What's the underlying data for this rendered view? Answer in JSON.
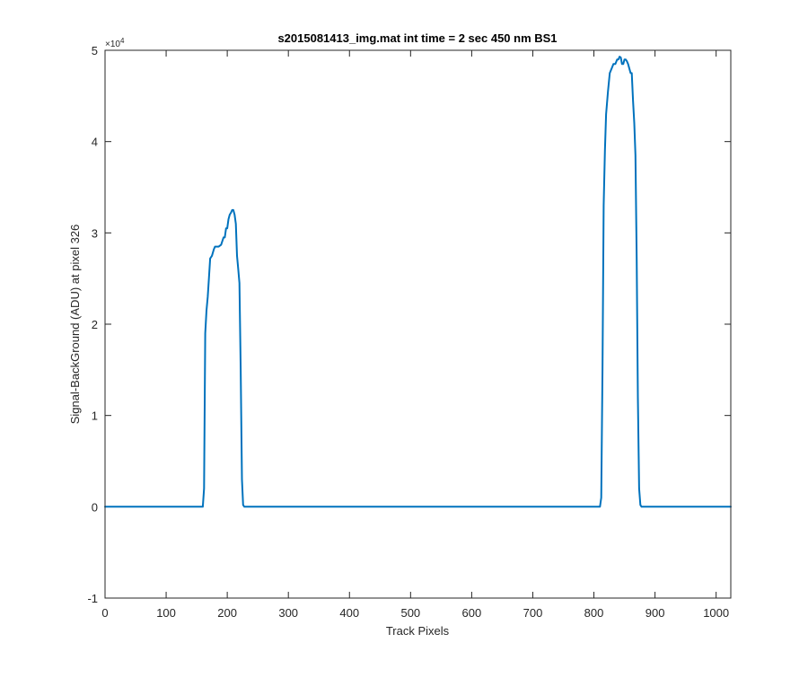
{
  "chart_data": {
    "type": "line",
    "title": "s2015081413_img.mat int time = 2 sec  450 nm BS1",
    "xlabel": "Track Pixels",
    "ylabel": "Signal-BackGround (ADU) at pixel 326",
    "xlim": [
      0,
      1024
    ],
    "ylim": [
      -1,
      5
    ],
    "y_scale_factor_label": "×10",
    "y_scale_exponent": "4",
    "x_ticks": [
      "0",
      "100",
      "200",
      "300",
      "400",
      "500",
      "600",
      "700",
      "800",
      "900",
      "1000"
    ],
    "y_ticks": [
      "-1",
      "0",
      "1",
      "2",
      "3",
      "4",
      "5"
    ],
    "grid": false,
    "legend": "none",
    "series": [
      {
        "color": "#0072bd",
        "x": [
          0,
          100,
          160,
          162,
          164,
          166,
          168,
          170,
          172,
          175,
          178,
          180,
          183,
          186,
          190,
          194,
          196,
          198,
          200,
          202,
          204,
          206,
          208,
          210,
          212,
          214,
          216,
          218,
          220,
          222,
          224,
          226,
          228,
          230,
          300,
          500,
          700,
          810,
          812,
          814,
          816,
          818,
          820,
          823,
          826,
          829,
          832,
          835,
          838,
          840,
          842,
          844,
          846,
          848,
          850,
          852,
          854,
          856,
          858,
          860,
          862,
          864,
          866,
          868,
          870,
          872,
          874,
          876,
          878,
          950,
          1024
        ],
        "y": [
          0,
          0,
          0,
          0.2,
          1.9,
          2.15,
          2.3,
          2.5,
          2.72,
          2.75,
          2.82,
          2.85,
          2.85,
          2.85,
          2.87,
          2.95,
          2.95,
          3.05,
          3.05,
          3.15,
          3.2,
          3.22,
          3.25,
          3.25,
          3.2,
          3.1,
          2.75,
          2.6,
          2.45,
          1.5,
          0.3,
          0.02,
          0,
          0,
          0,
          0,
          0,
          0,
          0.1,
          1.5,
          3.3,
          3.9,
          4.3,
          4.55,
          4.75,
          4.8,
          4.85,
          4.85,
          4.9,
          4.9,
          4.93,
          4.92,
          4.85,
          4.85,
          4.9,
          4.9,
          4.88,
          4.85,
          4.8,
          4.75,
          4.75,
          4.45,
          4.2,
          3.85,
          2.7,
          1.2,
          0.2,
          0.02,
          0,
          0,
          0
        ]
      }
    ]
  }
}
